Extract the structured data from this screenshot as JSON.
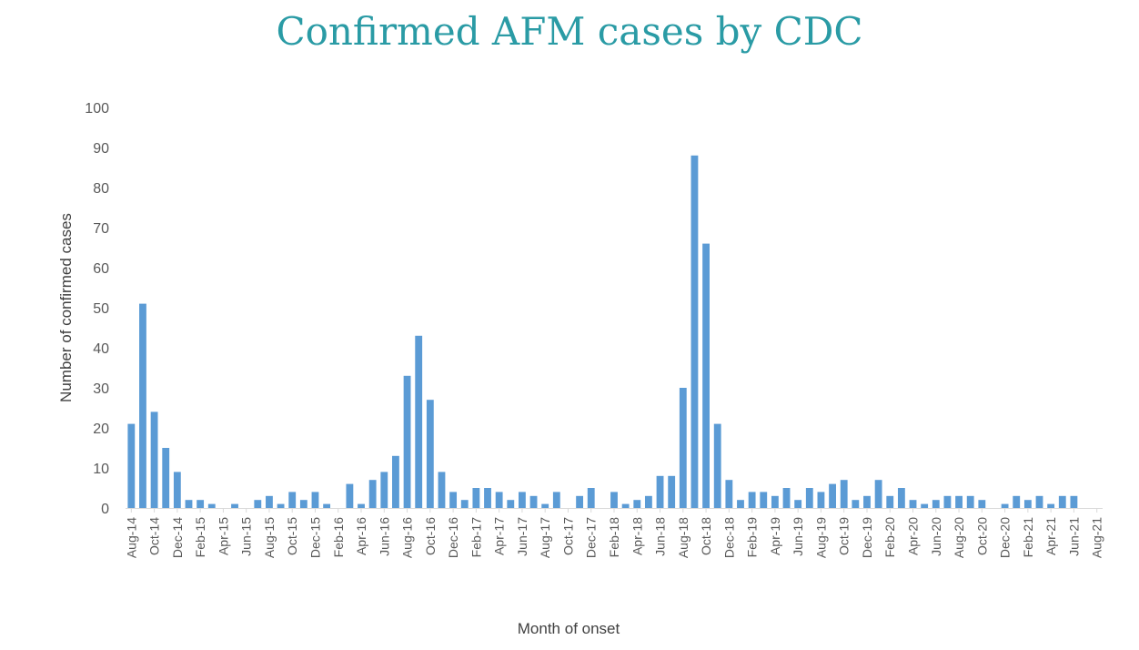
{
  "chart_data": {
    "type": "bar",
    "title": "Confirmed AFM cases by CDC",
    "xlabel": "Month of onset",
    "ylabel": "Number of confirmed cases",
    "ylim": [
      0,
      100
    ],
    "yticks": [
      0,
      10,
      20,
      30,
      40,
      50,
      60,
      70,
      80,
      90,
      100
    ],
    "grid": false,
    "color": "#5b9bd5",
    "categories": [
      "Aug-14",
      "Sep-14",
      "Oct-14",
      "Nov-14",
      "Dec-14",
      "Jan-15",
      "Feb-15",
      "Mar-15",
      "Apr-15",
      "May-15",
      "Jun-15",
      "Jul-15",
      "Aug-15",
      "Sep-15",
      "Oct-15",
      "Nov-15",
      "Dec-15",
      "Jan-16",
      "Feb-16",
      "Mar-16",
      "Apr-16",
      "May-16",
      "Jun-16",
      "Jul-16",
      "Aug-16",
      "Sep-16",
      "Oct-16",
      "Nov-16",
      "Dec-16",
      "Jan-17",
      "Feb-17",
      "Mar-17",
      "Apr-17",
      "May-17",
      "Jun-17",
      "Jul-17",
      "Aug-17",
      "Sep-17",
      "Oct-17",
      "Nov-17",
      "Dec-17",
      "Jan-18",
      "Feb-18",
      "Mar-18",
      "Apr-18",
      "May-18",
      "Jun-18",
      "Jul-18",
      "Aug-18",
      "Sep-18",
      "Oct-18",
      "Nov-18",
      "Dec-18",
      "Jan-19",
      "Feb-19",
      "Mar-19",
      "Apr-19",
      "May-19",
      "Jun-19",
      "Jul-19",
      "Aug-19",
      "Sep-19",
      "Oct-19",
      "Nov-19",
      "Dec-19",
      "Jan-20",
      "Feb-20",
      "Mar-20",
      "Apr-20",
      "May-20",
      "Jun-20",
      "Jul-20",
      "Aug-20",
      "Sep-20",
      "Oct-20",
      "Nov-20",
      "Dec-20",
      "Jan-21",
      "Feb-21",
      "Mar-21",
      "Apr-21",
      "May-21",
      "Jun-21",
      "Jul-21",
      "Aug-21"
    ],
    "x_tick_labels": [
      "Aug-14",
      "Oct-14",
      "Dec-14",
      "Feb-15",
      "Apr-15",
      "Jun-15",
      "Aug-15",
      "Oct-15",
      "Dec-15",
      "Feb-16",
      "Apr-16",
      "Jun-16",
      "Aug-16",
      "Oct-16",
      "Dec-16",
      "Feb-17",
      "Apr-17",
      "Jun-17",
      "Aug-17",
      "Oct-17",
      "Dec-17",
      "Feb-18",
      "Apr-18",
      "Jun-18",
      "Aug-18",
      "Oct-18",
      "Dec-18",
      "Feb-19",
      "Apr-19",
      "Jun-19",
      "Aug-19",
      "Oct-19",
      "Dec-19",
      "Feb-20",
      "Apr-20",
      "Jun-20",
      "Aug-20",
      "Oct-20",
      "Dec-20",
      "Feb-21",
      "Apr-21",
      "Jun-21",
      "Aug-21"
    ],
    "values": [
      21,
      51,
      24,
      15,
      9,
      2,
      2,
      1,
      0,
      1,
      0,
      2,
      3,
      1,
      4,
      2,
      4,
      1,
      0,
      6,
      1,
      7,
      9,
      13,
      33,
      43,
      27,
      9,
      4,
      2,
      5,
      5,
      4,
      2,
      4,
      3,
      1,
      4,
      0,
      3,
      5,
      0,
      4,
      1,
      2,
      3,
      8,
      8,
      30,
      88,
      66,
      21,
      7,
      2,
      4,
      4,
      3,
      5,
      2,
      5,
      4,
      6,
      7,
      2,
      3,
      7,
      3,
      5,
      2,
      1,
      2,
      3,
      3,
      3,
      2,
      0,
      1,
      3,
      2,
      3,
      1,
      3,
      3,
      0,
      0
    ]
  }
}
